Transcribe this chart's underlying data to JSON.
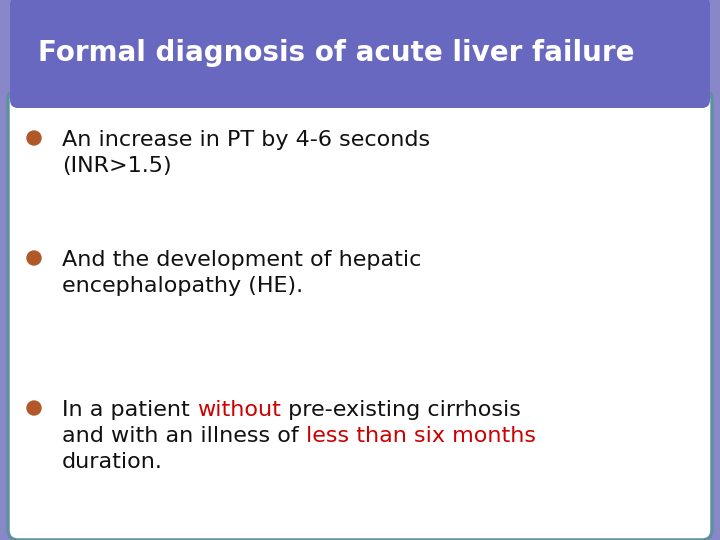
{
  "title": "Formal diagnosis of acute liver failure",
  "title_bg_color": "#6868c0",
  "title_text_color": "#ffffff",
  "bg_color": "#ffffff",
  "border_color": "#6090a0",
  "outer_bg_color": "#8888c8",
  "bullet_color": "#b05828",
  "bullet_points": [
    {
      "lines": [
        [
          {
            "text": "An increase in PT by 4-6 seconds",
            "color": "#111111"
          }
        ],
        [
          {
            "text": "(INR>1.5)",
            "color": "#111111"
          }
        ]
      ]
    },
    {
      "lines": [
        [
          {
            "text": "And the development of hepatic",
            "color": "#111111"
          }
        ],
        [
          {
            "text": "encephalopathy (HE).",
            "color": "#111111"
          }
        ]
      ]
    },
    {
      "lines": [
        [
          {
            "text": "In a patient ",
            "color": "#111111"
          },
          {
            "text": "without",
            "color": "#cc0000"
          },
          {
            "text": " pre-existing cirrhosis",
            "color": "#111111"
          }
        ],
        [
          {
            "text": "and with an illness of ",
            "color": "#111111"
          },
          {
            "text": "less than six months",
            "color": "#cc0000"
          }
        ],
        [
          {
            "text": "duration.",
            "color": "#111111"
          }
        ]
      ]
    }
  ],
  "font_size_title": 20,
  "font_size_body": 16
}
